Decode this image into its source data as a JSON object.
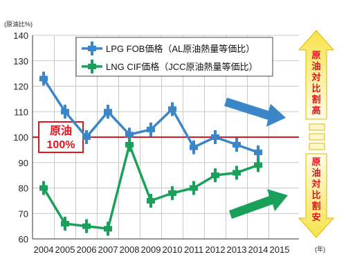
{
  "chart_data": {
    "type": "line",
    "y_unit": "(原油比%)",
    "x_unit": "(年)",
    "x": [
      "2004",
      "2005",
      "2006",
      "2007",
      "2008",
      "2009",
      "2010",
      "2011",
      "2012",
      "2013",
      "2014"
    ],
    "x_ticks": [
      "2004",
      "2005",
      "2006",
      "2007",
      "2008",
      "2009",
      "2010",
      "2011",
      "2012",
      "2013",
      "2014",
      "2015"
    ],
    "ylim": [
      60,
      140
    ],
    "y_ticks": [
      60,
      70,
      80,
      90,
      100,
      110,
      120,
      130,
      140
    ],
    "grid": true,
    "legend_position": "top-center",
    "series": [
      {
        "name": "LPG FOB価格（AL原油熱量等価比）",
        "color": "#3b86c8",
        "values": [
          123,
          110,
          100,
          110,
          101,
          103,
          111,
          96,
          100,
          97,
          94
        ]
      },
      {
        "name": "LNG CIF価格（JCC原油熱量等価比）",
        "color": "#1aa05a",
        "values": [
          80,
          66,
          65,
          64,
          97,
          75,
          78,
          80,
          85,
          86,
          89
        ]
      }
    ],
    "reference_line": {
      "value": 100,
      "label_line1": "原油",
      "label_line2": "100%",
      "color": "#e0141e"
    },
    "side_labels": {
      "upper": "原油対比割高",
      "lower": "原油対比割安"
    }
  }
}
